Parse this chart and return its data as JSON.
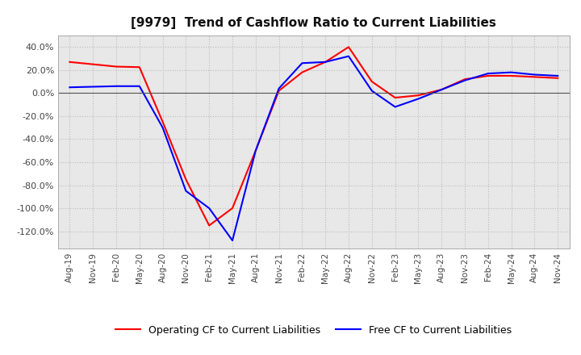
{
  "title": "[9979]  Trend of Cashflow Ratio to Current Liabilities",
  "x_labels": [
    "Aug-19",
    "Nov-19",
    "Feb-20",
    "May-20",
    "Aug-20",
    "Nov-20",
    "Feb-21",
    "May-21",
    "Aug-21",
    "Nov-21",
    "Feb-22",
    "May-22",
    "Aug-22",
    "Nov-22",
    "Feb-23",
    "May-23",
    "Aug-23",
    "Nov-23",
    "Feb-24",
    "May-24",
    "Aug-24",
    "Nov-24"
  ],
  "operating_cf": [
    27.0,
    25.0,
    23.0,
    22.5,
    -25.0,
    -75.0,
    -115.0,
    -100.0,
    -50.0,
    2.0,
    18.0,
    27.0,
    40.0,
    10.0,
    -4.0,
    -2.0,
    3.0,
    12.0,
    15.0,
    15.0,
    14.0,
    13.0
  ],
  "free_cf": [
    5.0,
    5.5,
    6.0,
    6.0,
    -30.0,
    -85.0,
    -100.0,
    -128.0,
    -50.0,
    4.0,
    26.0,
    27.0,
    32.0,
    2.0,
    -12.0,
    -5.0,
    3.0,
    11.0,
    17.0,
    18.0,
    16.0,
    15.0
  ],
  "operating_color": "#ff0000",
  "free_color": "#0000ff",
  "ylim_min": -135,
  "ylim_max": 50,
  "yticks": [
    -120.0,
    -100.0,
    -80.0,
    -60.0,
    -40.0,
    -20.0,
    0.0,
    20.0,
    40.0
  ],
  "background_color": "#ffffff",
  "plot_bg_color": "#e8e8e8",
  "grid_color": "#bbbbbb",
  "legend_op": "Operating CF to Current Liabilities",
  "legend_free": "Free CF to Current Liabilities",
  "title_fontsize": 11,
  "tick_fontsize": 7.5,
  "ytick_fontsize": 8,
  "line_width": 1.5
}
